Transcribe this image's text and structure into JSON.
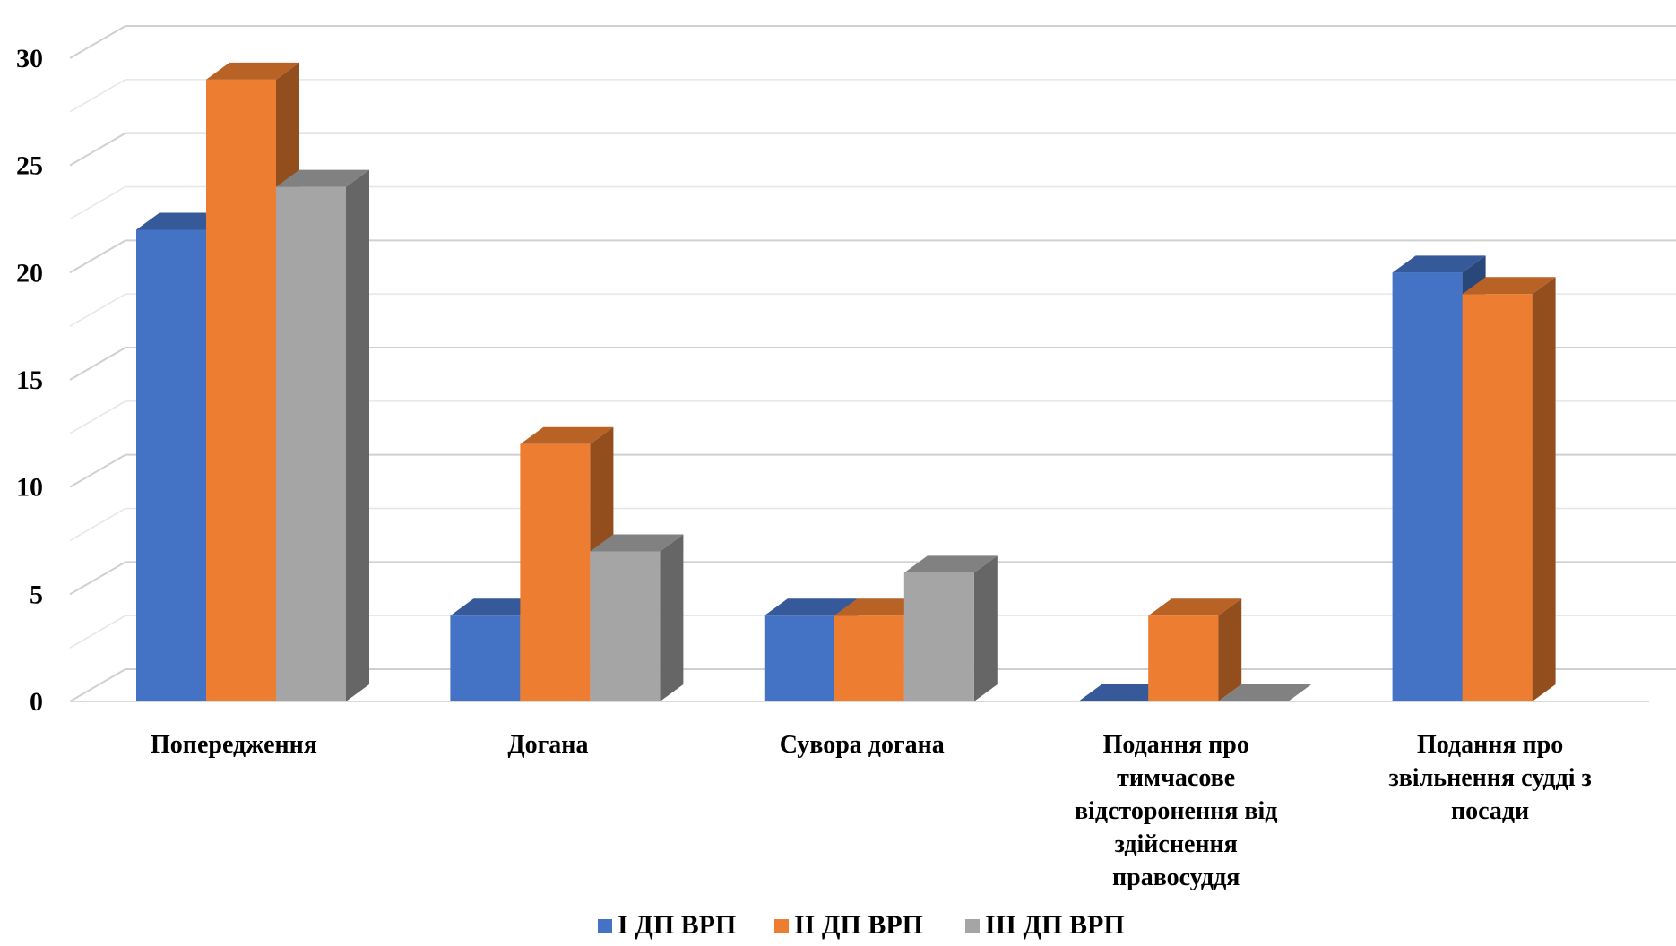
{
  "chart_data": {
    "type": "bar",
    "title": "",
    "xlabel": "",
    "ylabel": "",
    "ylim": [
      0,
      30
    ],
    "yticks": [
      "0",
      "5",
      "10",
      "15",
      "20",
      "25",
      "30"
    ],
    "grid": true,
    "legend_position": "bottom",
    "categories": [
      [
        "Попередження"
      ],
      [
        "Догана"
      ],
      [
        "Сувора догана"
      ],
      [
        "Подання про",
        "тимчасове",
        "відсторонення від",
        "здійснення",
        "правосуддя"
      ],
      [
        "Подання про",
        "звільнення судді з",
        "посади"
      ]
    ],
    "series": [
      {
        "name": "І ДП ВРП",
        "color": "#4472C4",
        "values": [
          22,
          4,
          4,
          0,
          20
        ]
      },
      {
        "name": "ІІ ДП ВРП",
        "color": "#ED7D31",
        "values": [
          29,
          12,
          4,
          4,
          19
        ]
      },
      {
        "name": "ІІІ ДП ВРП",
        "color": "#A5A5A5",
        "values": [
          24,
          7,
          6,
          0,
          null
        ]
      }
    ]
  }
}
